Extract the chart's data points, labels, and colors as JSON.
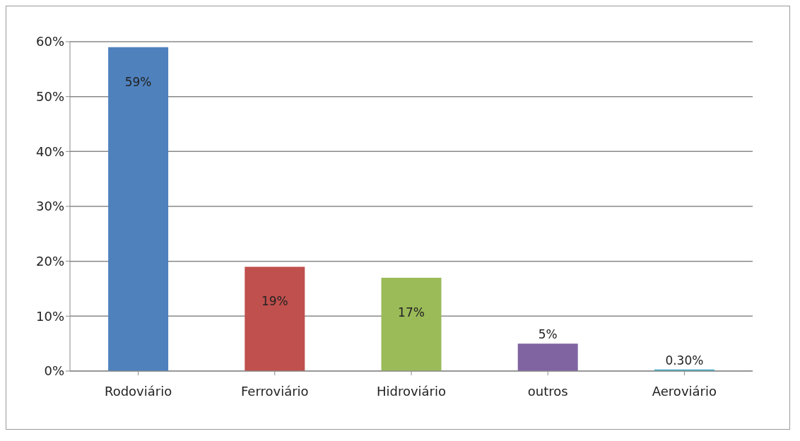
{
  "chart_data": {
    "type": "bar",
    "categories": [
      "Rodoviário",
      "Ferroviário",
      "Hidroviário",
      "outros",
      "Aeroviário"
    ],
    "values": [
      59,
      19,
      17,
      5,
      0.3
    ],
    "colors": [
      "#4f81bd",
      "#c0504d",
      "#9bbb59",
      "#8064a2",
      "#4bacc6"
    ],
    "value_labels": [
      "59%",
      "19%",
      "17%",
      "5%",
      "0.30%"
    ],
    "ylim": [
      0,
      60
    ],
    "yticks": [
      {
        "value": 0,
        "label": "0%"
      },
      {
        "value": 10,
        "label": "10%"
      },
      {
        "value": 20,
        "label": "20%"
      },
      {
        "value": 30,
        "label": "30%"
      },
      {
        "value": 40,
        "label": "40%"
      },
      {
        "value": 50,
        "label": "50%"
      },
      {
        "value": 60,
        "label": "60%"
      }
    ],
    "grid": "y"
  }
}
